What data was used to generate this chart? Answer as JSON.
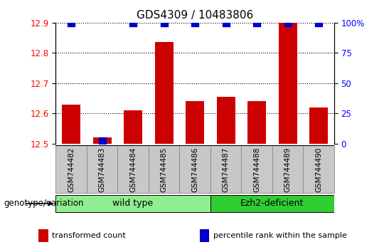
{
  "title": "GDS4309 / 10483806",
  "samples": [
    "GSM744482",
    "GSM744483",
    "GSM744484",
    "GSM744485",
    "GSM744486",
    "GSM744487",
    "GSM744488",
    "GSM744489",
    "GSM744490"
  ],
  "transformed_counts": [
    12.63,
    12.52,
    12.61,
    12.835,
    12.64,
    12.655,
    12.64,
    12.9,
    12.62
  ],
  "percentile_ranks": [
    100,
    2,
    100,
    100,
    100,
    100,
    100,
    100,
    100
  ],
  "ylim_left": [
    12.5,
    12.9
  ],
  "yticks_left": [
    12.5,
    12.6,
    12.7,
    12.8,
    12.9
  ],
  "ylim_right": [
    0,
    100
  ],
  "yticks_right": [
    0,
    25,
    50,
    75,
    100
  ],
  "ytick_labels_right": [
    "0",
    "25",
    "50",
    "75",
    "100%"
  ],
  "groups": [
    {
      "label": "wild type",
      "indices": [
        0,
        1,
        2,
        3,
        4
      ],
      "color": "#90EE90"
    },
    {
      "label": "Ezh2-deficient",
      "indices": [
        5,
        6,
        7,
        8
      ],
      "color": "#32CD32"
    }
  ],
  "bar_color": "#CC0000",
  "dot_color": "#0000CC",
  "group_label": "genotype/variation",
  "legend_items": [
    {
      "label": "transformed count",
      "color": "#CC0000"
    },
    {
      "label": "percentile rank within the sample",
      "color": "#0000CC"
    }
  ],
  "bg_color": "#FFFFFF",
  "sample_box_color": "#C8C8C8",
  "sample_box_edge": "#888888",
  "bar_width": 0.6,
  "dot_size": 55,
  "title_fontsize": 11
}
